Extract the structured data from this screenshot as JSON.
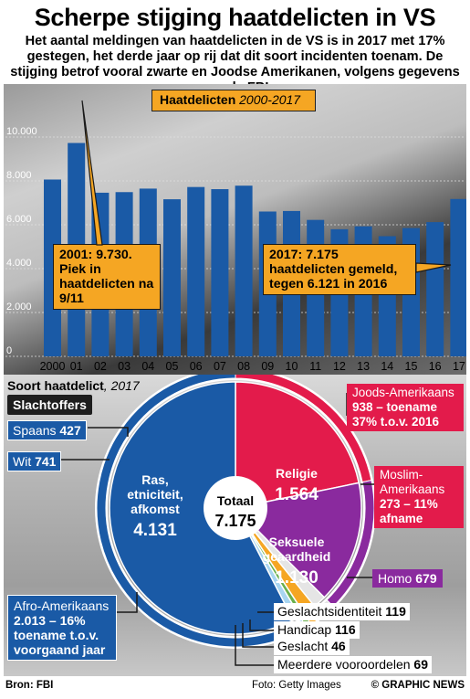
{
  "header": {
    "title": "Scherpe stijging haatdelicten in VS",
    "subtitle": "Het aantal meldingen van haatdelicten in de VS is in 2017 met 17% gestegen, het derde jaar op rij dat dit soort incidenten toenam. De stijging betrof vooral zwarte en Joodse Amerikanen, volgens gegevens van de FBI"
  },
  "bar_section": {
    "label_main": "Haatdelicten",
    "label_years": "2000-2017",
    "callout_2001": "2001: 9.730. Piek in haatdelicten na 9/11",
    "callout_2017": "2017: 7.175 haatdelicten gemeld, tegen 6.121 in 2016"
  },
  "chart_data": [
    {
      "type": "bar",
      "title": "Haatdelicten 2000-2017",
      "categories": [
        "2000",
        "01",
        "02",
        "03",
        "04",
        "05",
        "06",
        "07",
        "08",
        "09",
        "10",
        "11",
        "12",
        "13",
        "14",
        "15",
        "16",
        "17"
      ],
      "values": [
        8063,
        9730,
        7462,
        7489,
        7649,
        7163,
        7722,
        7624,
        7783,
        6604,
        6628,
        6222,
        5796,
        5928,
        5479,
        5850,
        6121,
        7175
      ],
      "y_ticks": [
        "0",
        "2.000",
        "4.000",
        "6.000",
        "8.000",
        "10.000"
      ],
      "ylim": [
        0,
        10000
      ],
      "color": "#1a5aa6"
    },
    {
      "type": "pie",
      "title": "Soort haatdelict, 2017",
      "center_label": "Totaal",
      "center_value": "7.175",
      "slices": [
        {
          "name": "Ras, etniciteit, afkomst",
          "value": 4131,
          "value_text": "4.131",
          "color": "#1a5aa6"
        },
        {
          "name": "Religie",
          "value": 1564,
          "value_text": "1.564",
          "color": "#e31b4b"
        },
        {
          "name": "Seksuele geaardheid",
          "value": 1130,
          "value_text": "1.130",
          "color": "#8a2a9e"
        },
        {
          "name": "Geslachtsidentiteit",
          "value": 119,
          "value_text": "119",
          "color": "#e5e5e5"
        },
        {
          "name": "Handicap",
          "value": 116,
          "value_text": "116",
          "color": "#f5a623"
        },
        {
          "name": "Geslacht",
          "value": 46,
          "value_text": "46",
          "color": "#6ab04c"
        },
        {
          "name": "Meerdere vooroordelen",
          "value": 69,
          "value_text": "69",
          "color": "#a8d5f0"
        }
      ]
    }
  ],
  "pie_section": {
    "title_main": "Soort haatdelict",
    "title_year": ", 2017",
    "victims_label": "Slachtoffers",
    "victims": {
      "spaans": {
        "label": "Spaans",
        "value": "427"
      },
      "wit": {
        "label": "Wit",
        "value": "741"
      },
      "afro": {
        "label": "Afro-Amerikaans",
        "detail": "2.013 – 16% toename t.o.v. voorgaand jaar"
      },
      "joods": {
        "label": "Joods-Amerikaans",
        "detail": "938 – toename 37% t.o.v. 2016"
      },
      "moslim": {
        "label": "Moslim-Amerikaans",
        "detail": "273 – 11% afname"
      },
      "homo": {
        "label": "Homo",
        "value": "679"
      }
    },
    "small_labels": {
      "geslachtsidentiteit": {
        "label": "Geslachtsidentiteit",
        "value": "119"
      },
      "handicap": {
        "label": "Handicap",
        "value": "116"
      },
      "geslacht": {
        "label": "Geslacht",
        "value": "46"
      },
      "meerdere": {
        "label": "Meerdere vooroordelen",
        "value": "69"
      }
    }
  },
  "footer": {
    "source": "Bron: FBI",
    "photo": "Foto: Getty Images",
    "credit": "© GRAPHIC NEWS"
  }
}
